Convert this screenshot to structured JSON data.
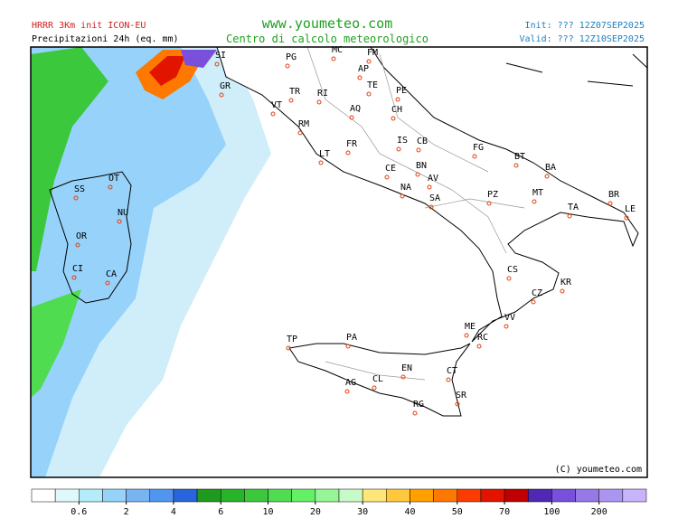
{
  "header": {
    "model": "HRRR 3Km init ICON-EU",
    "product": "Precipitazioni 24h (eq. mm)",
    "site": "www.youmeteo.com",
    "subtitle": "Centro di calcolo meteorologico",
    "init": "Init: ??? 12Z07SEP2025",
    "valid": "Valid: ??? 12Z10SEP2025"
  },
  "map": {
    "labels": [
      "SI",
      "PG",
      "MC",
      "FM",
      "AP",
      "GR",
      "TE",
      "PE",
      "TR",
      "RI",
      "AQ",
      "CH",
      "VT",
      "RM",
      "FR",
      "IS",
      "CB",
      "FG",
      "LT",
      "BT",
      "CE",
      "BN",
      "BA",
      "AV",
      "NA",
      "MT",
      "PZ",
      "SA",
      "BR",
      "TA",
      "LE",
      "CS",
      "KR",
      "CZ",
      "VV",
      "ME",
      "RC",
      "TP",
      "PA",
      "EN",
      "CT",
      "AG",
      "CL",
      "SR",
      "RG",
      "OT",
      "SS",
      "NU",
      "OR",
      "CI",
      "CA"
    ],
    "copyright": "(C) youmeteo.com"
  },
  "colorbar": {
    "colors": [
      "#ffffff",
      "#e0f8fc",
      "#b4ecfa",
      "#96d2fa",
      "#78b4f0",
      "#5096f0",
      "#2864dc",
      "#1e9b1e",
      "#28b428",
      "#3cc83c",
      "#50dc50",
      "#64f064",
      "#96f596",
      "#c8fac8",
      "#ffe678",
      "#ffc83c",
      "#ffa000",
      "#ff7800",
      "#fa3c00",
      "#e11400",
      "#c00000",
      "#5028b4",
      "#7850dc",
      "#9678e6",
      "#aa96f0",
      "#c8b4fa"
    ],
    "ticks": [
      0.6,
      2,
      4,
      6,
      10,
      20,
      30,
      40,
      50,
      70,
      100,
      200
    ]
  }
}
